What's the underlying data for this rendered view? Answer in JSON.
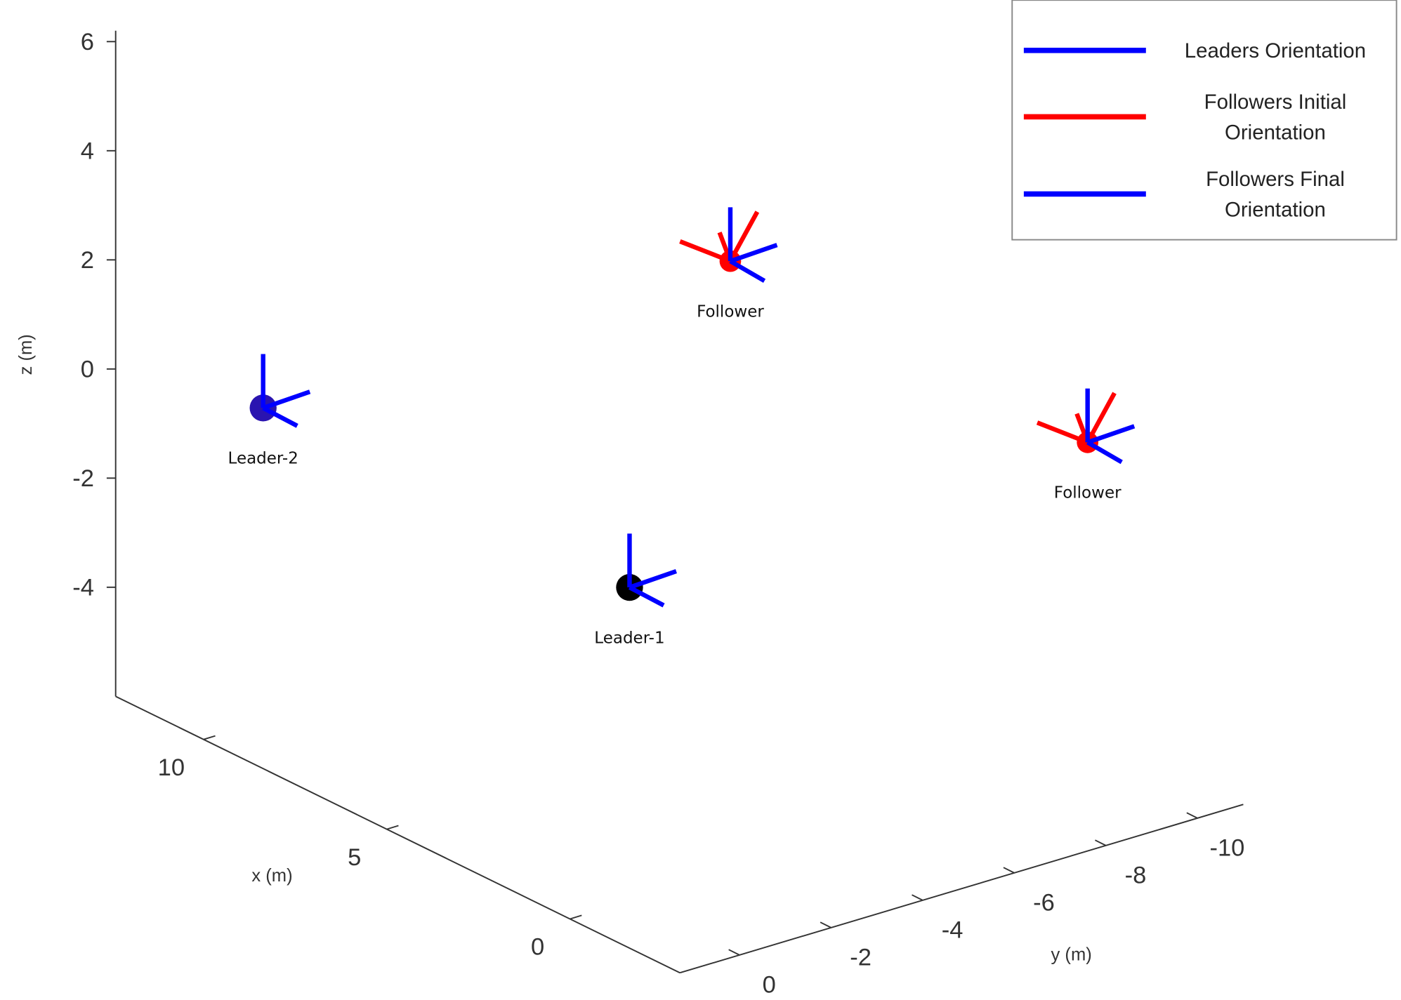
{
  "chart_data": {
    "type": "scatter3d",
    "xlabel": "x (m)",
    "ylabel": "y (m)",
    "zlabel": "z (m)",
    "xlim": [
      -3,
      12.4
    ],
    "ylim": [
      -11,
      1.3
    ],
    "zlim": [
      -6,
      6.2
    ],
    "xticks": [
      0,
      5,
      10
    ],
    "yticks": [
      0,
      -2,
      -4,
      -6,
      -8,
      -10
    ],
    "zticks": [
      -4,
      -2,
      0,
      2,
      4,
      6
    ],
    "points": [
      {
        "label": "Leader-1",
        "x": 0,
        "y": 0,
        "z": -0.25,
        "color": "#000000",
        "role": "leader"
      },
      {
        "label": "Leader-2",
        "x": 10,
        "y": 0,
        "z": -0.25,
        "color": "#2a14b0",
        "role": "leader"
      },
      {
        "label": "Follower",
        "x": 6,
        "y": -7,
        "z": 2,
        "color": "#ff0000",
        "role": "follower"
      },
      {
        "label": "Follower",
        "x": 0,
        "y": -10,
        "z": -0.1,
        "color": "#ff0000",
        "role": "follower"
      }
    ],
    "legend": [
      {
        "name": "Leaders Orientation",
        "color": "#0000ff"
      },
      {
        "name": "Followers Initial Orientation",
        "color": "#ff0000"
      },
      {
        "name": "Followers Final Orientation",
        "color": "#0000ff"
      }
    ]
  }
}
